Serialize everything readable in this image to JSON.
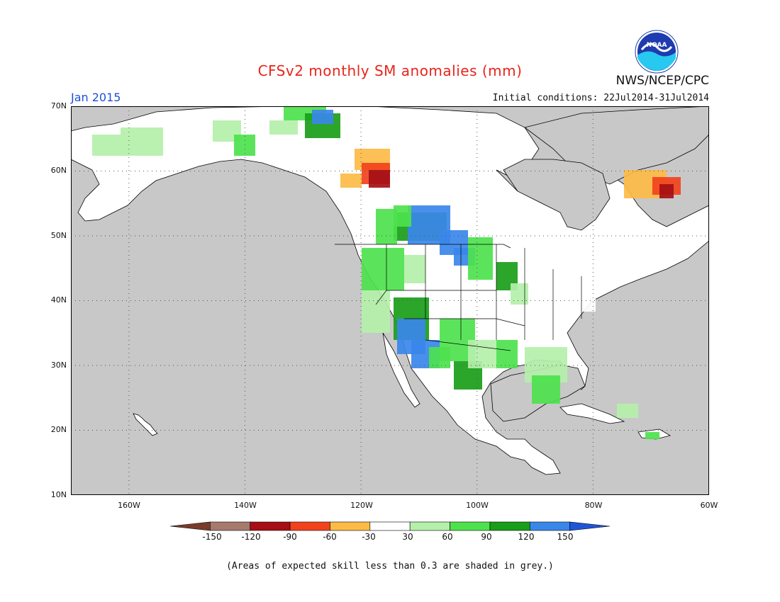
{
  "title": "CFSv2 monthly SM anomalies (mm)",
  "period": "Jan 2015",
  "initial_conditions": "Initial conditions: 22Jul2014-31Jul2014",
  "agency": "NWS/NCEP/CPC",
  "logo_text": "NOAA",
  "lat_labels": [
    "70N",
    "60N",
    "50N",
    "40N",
    "30N",
    "20N",
    "10N"
  ],
  "lon_labels": [
    "160W",
    "140W",
    "120W",
    "100W",
    "80W",
    "60W"
  ],
  "map": {
    "extent": {
      "lon_min": -170,
      "lon_max": -60,
      "lat_min": 10,
      "lat_max": 70
    },
    "grid_interval": {
      "lon": 20,
      "lat": 10
    },
    "grid_style": "dotted",
    "ocean_color": "#c8c8c8"
  },
  "colorbar": {
    "tick_labels": [
      "-150",
      "-120",
      "-90",
      "-60",
      "-30",
      "30",
      "60",
      "90",
      "120",
      "150"
    ],
    "colors": [
      "#7a3b2a",
      "#a77a6e",
      "#a50f15",
      "#f2421c",
      "#fcbb47",
      "#ffffff",
      "#b4f0aa",
      "#4de24d",
      "#199e19",
      "#3a87ea",
      "#1f55d8"
    ]
  },
  "footnote": "(Areas of expected skill less than 0.3 are shaded in grey.)"
}
